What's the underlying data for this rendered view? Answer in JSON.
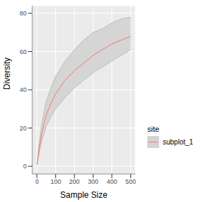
{
  "chart_data": {
    "type": "line",
    "x_label": "Sample Size",
    "y_label": "Diversity",
    "legend_title": "site",
    "legend": "right",
    "grid": true,
    "x": [
      1,
      10,
      25,
      50,
      75,
      100,
      150,
      200,
      250,
      300,
      350,
      400,
      450,
      500
    ],
    "series": [
      {
        "name": "subplot_1",
        "color": "#F8766D",
        "line_style": "solid",
        "values": [
          1,
          8,
          17,
          27,
          33,
          38,
          45,
          50,
          54,
          58,
          61,
          64,
          66,
          68
        ],
        "lower": [
          1,
          6,
          13,
          21,
          26,
          30,
          36,
          41,
          45,
          49,
          52,
          55,
          58,
          61
        ],
        "upper": [
          1,
          10,
          22,
          34,
          41,
          47,
          55,
          61,
          66,
          70,
          72,
          75,
          77,
          78
        ]
      }
    ],
    "xlim": [
      -25,
      525
    ],
    "ylim": [
      -4,
      84
    ],
    "xticks": [
      0,
      100,
      200,
      300,
      400,
      500
    ],
    "yticks": [
      0,
      20,
      40,
      60,
      80
    ]
  }
}
